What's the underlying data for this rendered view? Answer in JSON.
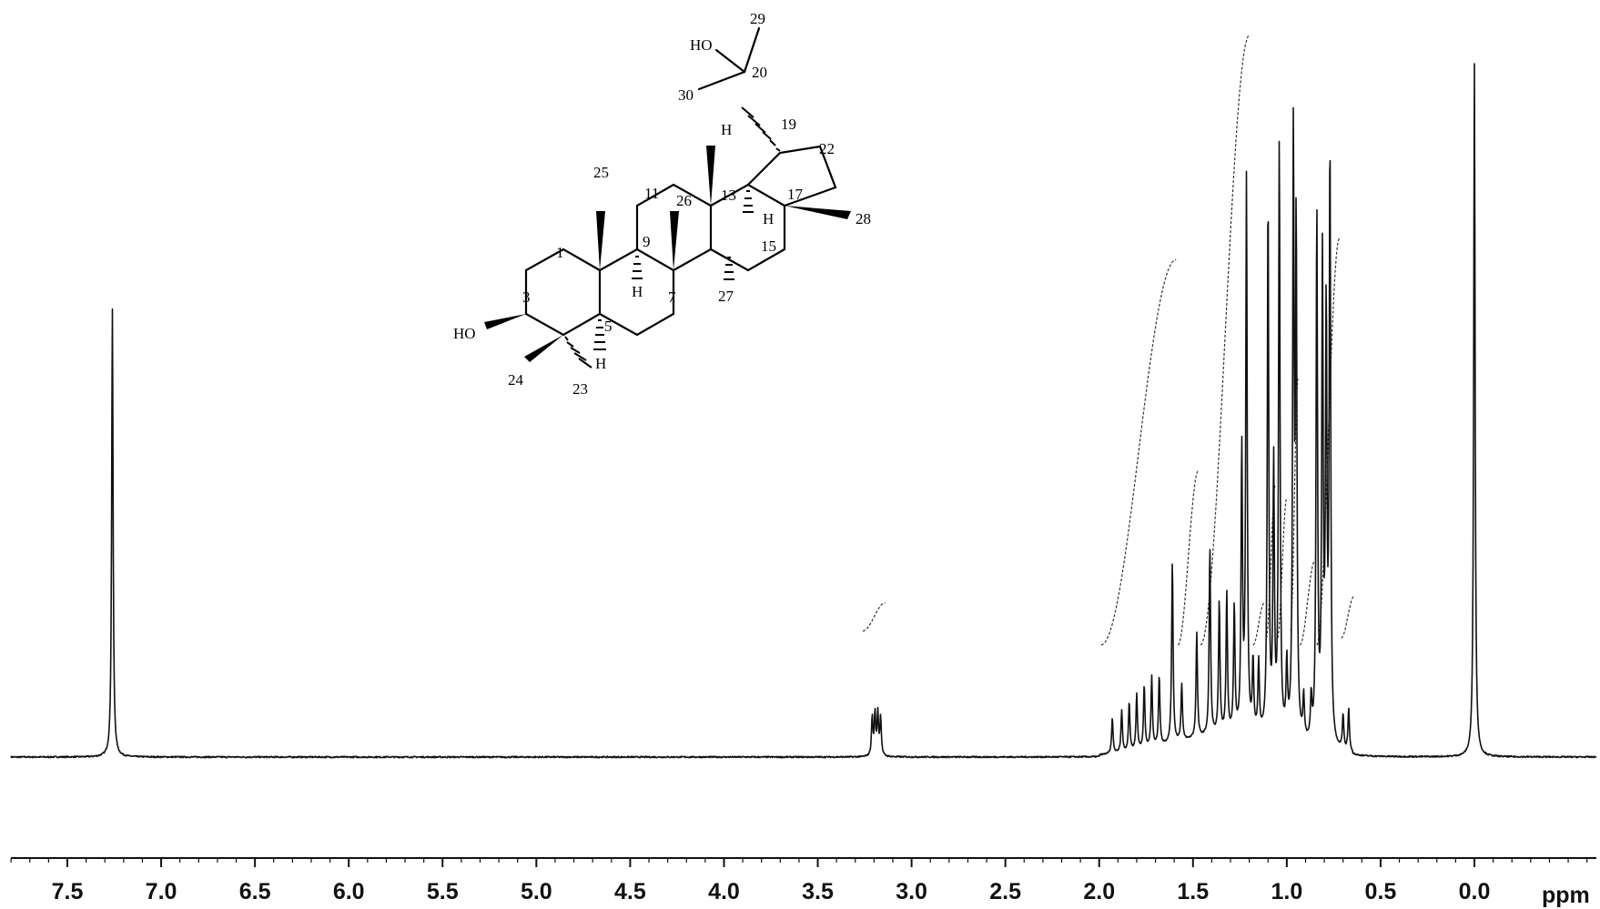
{
  "chart_data": {
    "type": "line",
    "xlabel": "ppm",
    "xlim": [
      7.95,
      -0.65
    ],
    "x_reversed": true,
    "ticks": [
      {
        "value": 7.5,
        "label": "7.5"
      },
      {
        "value": 7.0,
        "label": "7.0"
      },
      {
        "value": 6.5,
        "label": "6.5"
      },
      {
        "value": 6.0,
        "label": "6.0"
      },
      {
        "value": 5.5,
        "label": "5.5"
      },
      {
        "value": 5.0,
        "label": "5.0"
      },
      {
        "value": 4.5,
        "label": "4.5"
      },
      {
        "value": 4.0,
        "label": "4.0"
      },
      {
        "value": 3.5,
        "label": "3.5"
      },
      {
        "value": 3.0,
        "label": "3.0"
      },
      {
        "value": 2.5,
        "label": "2.5"
      },
      {
        "value": 2.0,
        "label": "2.0"
      },
      {
        "value": 1.5,
        "label": "1.5"
      },
      {
        "value": 1.0,
        "label": "1.0"
      },
      {
        "value": 0.5,
        "label": "0.5"
      },
      {
        "value": 0.0,
        "label": "0.0"
      }
    ],
    "peaks": [
      {
        "ppm": 7.26,
        "height": 0.64
      },
      {
        "ppm": 3.21,
        "height": 0.055
      },
      {
        "ppm": 3.195,
        "height": 0.06
      },
      {
        "ppm": 3.18,
        "height": 0.06
      },
      {
        "ppm": 3.165,
        "height": 0.055
      },
      {
        "ppm": 1.93,
        "height": 0.05
      },
      {
        "ppm": 1.88,
        "height": 0.06
      },
      {
        "ppm": 1.84,
        "height": 0.07
      },
      {
        "ppm": 1.8,
        "height": 0.08
      },
      {
        "ppm": 1.76,
        "height": 0.09
      },
      {
        "ppm": 1.72,
        "height": 0.1
      },
      {
        "ppm": 1.68,
        "height": 0.1
      },
      {
        "ppm": 1.61,
        "height": 0.26
      },
      {
        "ppm": 1.56,
        "height": 0.08
      },
      {
        "ppm": 1.48,
        "height": 0.15
      },
      {
        "ppm": 1.41,
        "height": 0.27
      },
      {
        "ppm": 1.36,
        "height": 0.19
      },
      {
        "ppm": 1.32,
        "height": 0.2
      },
      {
        "ppm": 1.28,
        "height": 0.18
      },
      {
        "ppm": 1.24,
        "height": 0.4
      },
      {
        "ppm": 1.215,
        "height": 0.79
      },
      {
        "ppm": 1.18,
        "height": 0.1
      },
      {
        "ppm": 1.15,
        "height": 0.1
      },
      {
        "ppm": 1.1,
        "height": 0.77
      },
      {
        "ppm": 1.07,
        "height": 0.38
      },
      {
        "ppm": 1.04,
        "height": 0.85
      },
      {
        "ppm": 1.0,
        "height": 0.1
      },
      {
        "ppm": 0.965,
        "height": 0.85
      },
      {
        "ppm": 0.95,
        "height": 0.72
      },
      {
        "ppm": 0.91,
        "height": 0.06
      },
      {
        "ppm": 0.87,
        "height": 0.06
      },
      {
        "ppm": 0.84,
        "height": 0.76
      },
      {
        "ppm": 0.81,
        "height": 0.68
      },
      {
        "ppm": 0.79,
        "height": 0.6
      },
      {
        "ppm": 0.77,
        "height": 0.85
      },
      {
        "ppm": 0.7,
        "height": 0.05
      },
      {
        "ppm": 0.67,
        "height": 0.06
      },
      {
        "ppm": 0.0,
        "height": 0.99
      }
    ],
    "integrals": [
      {
        "from": 3.26,
        "to": 3.14,
        "rise": 0.04
      },
      {
        "from": 1.99,
        "to": 1.59,
        "rise": 0.55
      },
      {
        "from": 1.58,
        "to": 1.47,
        "rise": 0.25
      },
      {
        "from": 1.46,
        "to": 1.2,
        "rise": 0.87
      },
      {
        "from": 1.18,
        "to": 1.12,
        "rise": 0.06
      },
      {
        "from": 1.11,
        "to": 1.06,
        "rise": 0.22
      },
      {
        "from": 1.05,
        "to": 1.0,
        "rise": 0.2
      },
      {
        "from": 0.98,
        "to": 0.94,
        "rise": 0.36
      },
      {
        "from": 0.93,
        "to": 0.85,
        "rise": 0.12
      },
      {
        "from": 0.84,
        "to": 0.72,
        "rise": 0.58
      },
      {
        "from": 0.71,
        "to": 0.64,
        "rise": 0.06
      }
    ]
  },
  "structure": {
    "atom_labels": {
      "HO_top": "HO",
      "C29": "29",
      "C20": "20",
      "C30": "30",
      "C19": "19",
      "C22": "22",
      "H13": "H",
      "C13": "13",
      "C17": "17",
      "C28": "28",
      "H18": "H",
      "C11": "11",
      "C26": "26",
      "C25": "25",
      "C1": "1",
      "C9": "9",
      "H9": "H",
      "C15": "15",
      "C7": "7",
      "C27": "27",
      "C3": "3",
      "HO_left": "HO",
      "C5": "5",
      "H5": "H",
      "C24": "24",
      "C23": "23"
    }
  }
}
